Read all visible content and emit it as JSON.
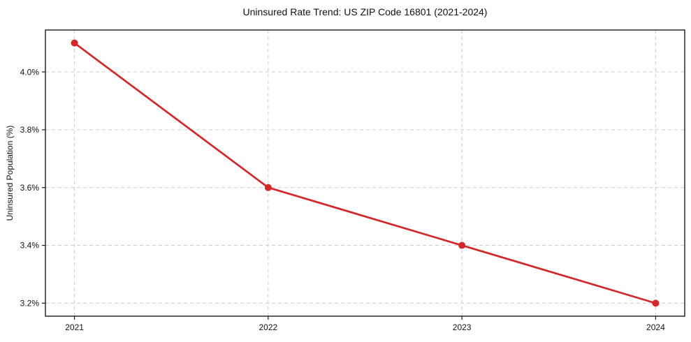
{
  "chart_data": {
    "type": "line",
    "title": "Uninsured Rate Trend: US ZIP Code 16801 (2021-2024)",
    "xlabel": "",
    "ylabel": "Uninsured Population (%)",
    "x": [
      2021,
      2022,
      2023,
      2024
    ],
    "values": [
      4.1,
      3.6,
      3.4,
      3.2
    ],
    "xticks": [
      {
        "value": 2021,
        "label": "2021"
      },
      {
        "value": 2022,
        "label": "2022"
      },
      {
        "value": 2023,
        "label": "2023"
      },
      {
        "value": 2024,
        "label": "2024"
      }
    ],
    "yticks": [
      {
        "value": 3.2,
        "label": "3.2%"
      },
      {
        "value": 3.4,
        "label": "3.4%"
      },
      {
        "value": 3.6,
        "label": "3.6%"
      },
      {
        "value": 3.8,
        "label": "3.8%"
      },
      {
        "value": 4.0,
        "label": "4.0%"
      }
    ],
    "xlim": [
      2020.85,
      2024.15
    ],
    "ylim": [
      3.155,
      4.145
    ],
    "grid": true,
    "grid_style": "dashed",
    "legend": false,
    "colors": {
      "line": "#d62728",
      "marker": "#d62728",
      "grid": "#cccccc",
      "spine": "#1a1a1a",
      "text": "#111111",
      "background": "#ffffff"
    }
  }
}
